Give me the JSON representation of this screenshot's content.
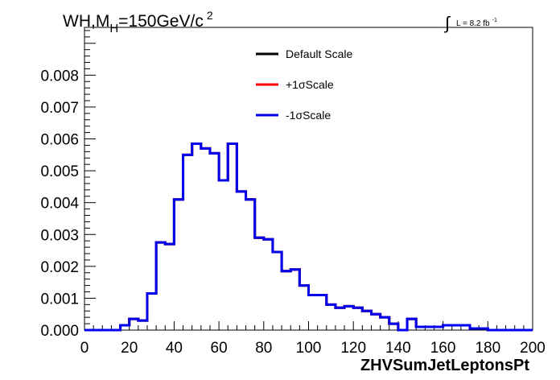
{
  "chart_data": {
    "type": "step",
    "title": {
      "main_left": "WH,M",
      "main_sub": "H",
      "main_right": "=150GeV/c",
      "main_sup": "2"
    },
    "lumi": {
      "integral_sign": "∫",
      "text": "L = 8.2 fb",
      "sup": "-1"
    },
    "xlabel": "ZHVSumJetLeptonsPt",
    "ylabel": "",
    "xlim": [
      0,
      200
    ],
    "ylim": [
      0,
      0.0095
    ],
    "x_ticks": [
      0,
      20,
      40,
      60,
      80,
      100,
      120,
      140,
      160,
      180,
      200
    ],
    "x_tick_labels": [
      "0",
      "20",
      "40",
      "60",
      "80",
      "100",
      "120",
      "140",
      "160",
      "180",
      "200"
    ],
    "y_ticks": [
      0,
      0.001,
      0.002,
      0.003,
      0.004,
      0.005,
      0.006,
      0.007,
      0.008
    ],
    "y_tick_labels": [
      "0.000",
      "0.001",
      "0.002",
      "0.003",
      "0.004",
      "0.005",
      "0.006",
      "0.007",
      "0.008"
    ],
    "legend_position": "top-center",
    "bin_width": 4,
    "bin_edges_start": 0,
    "series": [
      {
        "name": "Default Scale",
        "color": "#000000",
        "values": [
          0.0,
          0.0,
          0.0,
          0.0,
          0.00015,
          0.00035,
          0.0003,
          0.00115,
          0.00275,
          0.0027,
          0.0041,
          0.0055,
          0.00585,
          0.0057,
          0.00555,
          0.0047,
          0.00585,
          0.00435,
          0.0041,
          0.0029,
          0.00285,
          0.00245,
          0.00185,
          0.0019,
          0.0014,
          0.0011,
          0.0011,
          0.0008,
          0.0007,
          0.00075,
          0.0007,
          0.0006,
          0.0005,
          0.0004,
          0.0002,
          0.0,
          0.00035,
          0.0001,
          0.0001,
          0.0001,
          0.00015,
          0.00015,
          0.00015,
          5e-05,
          5e-05,
          0.0,
          0.0,
          0.0,
          0.0,
          0.0
        ]
      },
      {
        "name": "+1σScale",
        "color": "#ff0000",
        "values": [
          0.0,
          0.0,
          0.0,
          0.0,
          0.00015,
          0.00035,
          0.0003,
          0.00115,
          0.00275,
          0.0027,
          0.0041,
          0.0055,
          0.00585,
          0.0057,
          0.00555,
          0.0047,
          0.00585,
          0.00435,
          0.0041,
          0.0029,
          0.00285,
          0.00245,
          0.00185,
          0.0019,
          0.0014,
          0.0011,
          0.0011,
          0.0008,
          0.0007,
          0.00075,
          0.0007,
          0.0006,
          0.0005,
          0.0004,
          0.0002,
          0.0,
          0.00035,
          0.0001,
          0.0001,
          0.0001,
          0.00015,
          0.00015,
          0.00015,
          5e-05,
          5e-05,
          0.0,
          0.0,
          0.0,
          0.0,
          0.0
        ]
      },
      {
        "name": "-1σScale",
        "color": "#0000ee",
        "values": [
          0.0,
          0.0,
          0.0,
          0.0,
          0.00015,
          0.00035,
          0.0003,
          0.00115,
          0.00275,
          0.0027,
          0.0041,
          0.0055,
          0.00585,
          0.0057,
          0.00555,
          0.0047,
          0.00585,
          0.00435,
          0.0041,
          0.0029,
          0.00285,
          0.00245,
          0.00185,
          0.0019,
          0.0014,
          0.0011,
          0.0011,
          0.0008,
          0.0007,
          0.00075,
          0.0007,
          0.0006,
          0.0005,
          0.0004,
          0.0002,
          0.0,
          0.00035,
          0.0001,
          0.0001,
          0.0001,
          0.00015,
          0.00015,
          0.00015,
          5e-05,
          5e-05,
          0.0,
          0.0,
          0.0,
          0.0,
          0.0
        ]
      }
    ]
  }
}
